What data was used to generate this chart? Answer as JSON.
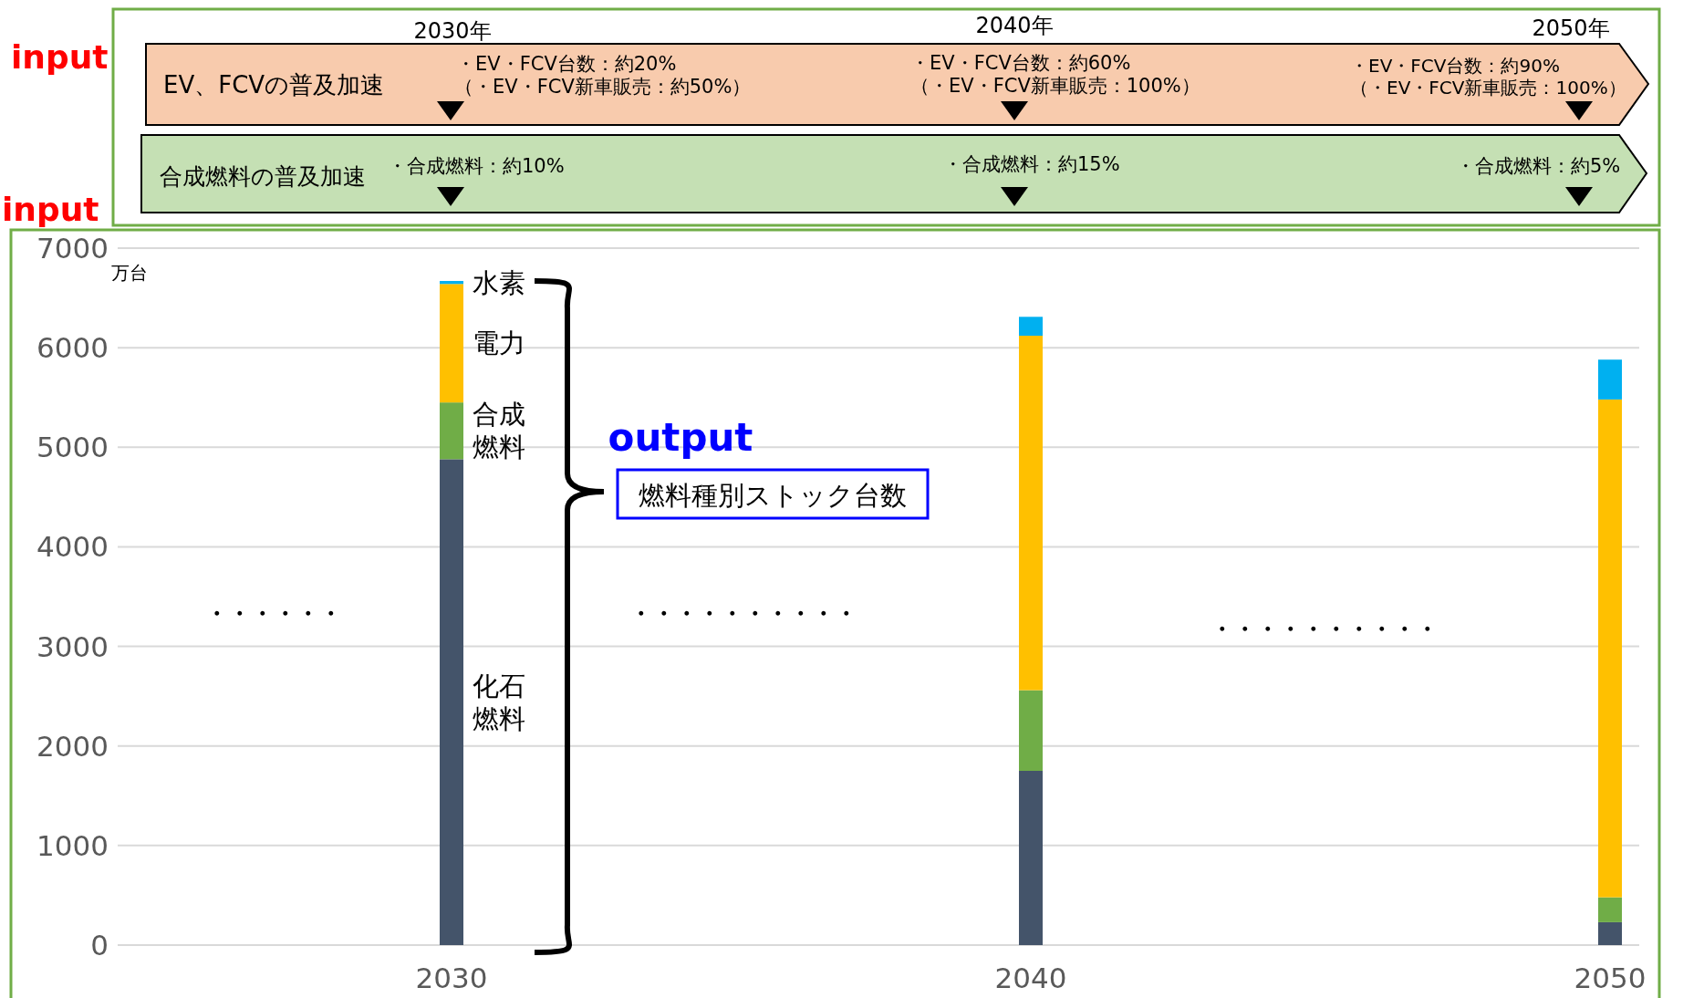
{
  "chart_data": {
    "type": "bar",
    "stacked": true,
    "ylabel": "万台",
    "categories": [
      "2030",
      "2040",
      "2050"
    ],
    "series": [
      {
        "name": "化石燃料",
        "color": "#44546a",
        "values": [
          4880,
          1750,
          230
        ]
      },
      {
        "name": "合成燃料",
        "color": "#70ad47",
        "values": [
          570,
          810,
          250
        ]
      },
      {
        "name": "電力",
        "color": "#ffc000",
        "values": [
          1190,
          3560,
          5000
        ]
      },
      {
        "name": "水素",
        "color": "#00b0f0",
        "values": [
          30,
          190,
          400
        ]
      }
    ],
    "ylim": [
      0,
      7000
    ],
    "yticks": [
      0,
      1000,
      2000,
      3000,
      4000,
      5000,
      6000,
      7000
    ],
    "grid": "y",
    "annotations": [
      "input",
      "input",
      "2030年",
      "2040年",
      "2050年",
      "EV、FCVの普及加速",
      "・EV・FCV台数：約20%",
      "（・EV・FCV新車販売：約50%）",
      "・EV・FCV台数：約60%",
      "（・EV・FCV新車販売：100%）",
      "・EV・FCV台数：約90%",
      "（・EV・FCV新車販売：100%）",
      "合成燃料の普及加速",
      "・合成燃料：約10%",
      "・合成燃料：約15%",
      "・合成燃料：約5%",
      "output",
      "燃料種別ストック台数",
      "・・・・・・",
      "・・・・・・・・・・",
      "・・・・・・・・・・"
    ]
  }
}
